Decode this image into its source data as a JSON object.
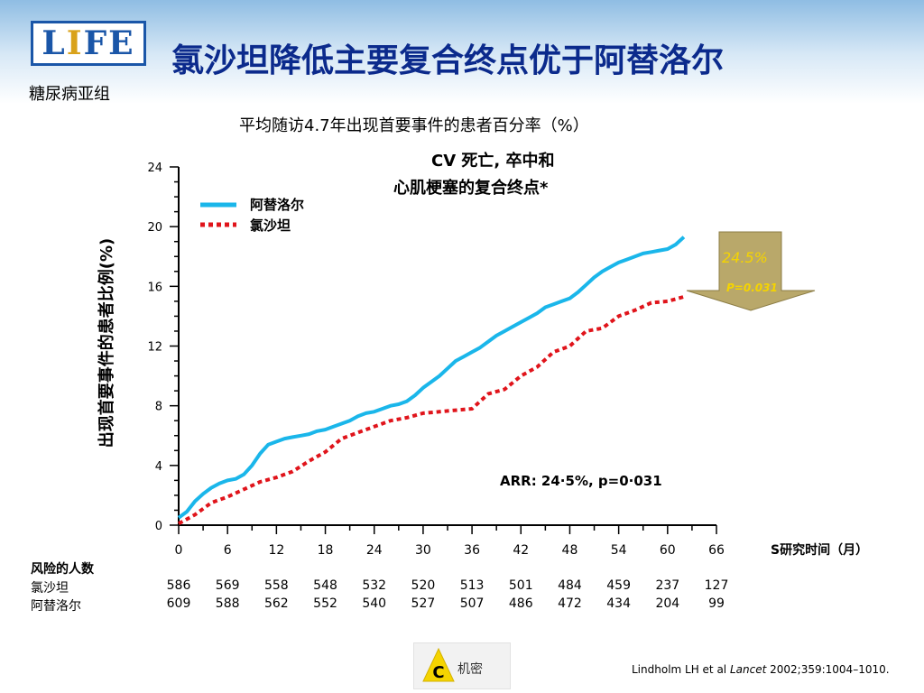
{
  "header": {
    "logo_left": "L",
    "logo_pillar": "I",
    "logo_right": "FE",
    "subgroup": "糖尿病亚组",
    "title": "氯沙坦降低主要复合终点优于阿替洛尔",
    "subtitle": "平均随访4.7年出现首要事件的患者百分率（%）"
  },
  "chart_data": {
    "type": "line",
    "title_line1": "CV 死亡, 卒中和",
    "title_line2": "心肌梗塞的复合终点*",
    "ylabel": "出现首要事件的患者比例(%)",
    "xlabel": "S研究时间（月）",
    "xlim": [
      0,
      66
    ],
    "ylim": [
      0,
      24
    ],
    "xticks": [
      "0",
      "6",
      "12",
      "18",
      "24",
      "30",
      "36",
      "42",
      "48",
      "54",
      "60",
      "66"
    ],
    "yticks": [
      "0",
      "4",
      "8",
      "12",
      "16",
      "20",
      "24"
    ],
    "legend_position": "top-left",
    "series": [
      {
        "name": "阿替洛尔",
        "color": "#1ab6ea",
        "style": "solid",
        "x": [
          0,
          1,
          2,
          3,
          4,
          5,
          6,
          7,
          8,
          9,
          10,
          11,
          12,
          13,
          14,
          15,
          16,
          17,
          18,
          19,
          20,
          21,
          22,
          23,
          24,
          25,
          26,
          27,
          28,
          29,
          30,
          31,
          32,
          33,
          34,
          35,
          36,
          37,
          38,
          39,
          40,
          41,
          42,
          43,
          44,
          45,
          46,
          47,
          48,
          49,
          50,
          51,
          52,
          53,
          54,
          55,
          56,
          57,
          58,
          59,
          60,
          61,
          62
        ],
        "values": [
          0.5,
          0.9,
          1.6,
          2.1,
          2.5,
          2.8,
          3.0,
          3.1,
          3.4,
          4.0,
          4.8,
          5.4,
          5.6,
          5.8,
          5.9,
          6.0,
          6.1,
          6.3,
          6.4,
          6.6,
          6.8,
          7.0,
          7.3,
          7.5,
          7.6,
          7.8,
          8.0,
          8.1,
          8.3,
          8.7,
          9.2,
          9.6,
          10.0,
          10.5,
          11.0,
          11.3,
          11.6,
          11.9,
          12.3,
          12.7,
          13.0,
          13.3,
          13.6,
          13.9,
          14.2,
          14.6,
          14.8,
          15.0,
          15.2,
          15.6,
          16.1,
          16.6,
          17.0,
          17.3,
          17.6,
          17.8,
          18.0,
          18.2,
          18.3,
          18.4,
          18.5,
          18.8,
          19.3
        ]
      },
      {
        "name": "氯沙坦",
        "color": "#e0141b",
        "style": "dotted",
        "x": [
          0,
          2,
          4,
          6,
          8,
          10,
          12,
          14,
          16,
          18,
          20,
          22,
          24,
          26,
          28,
          30,
          32,
          34,
          36,
          38,
          40,
          42,
          44,
          46,
          48,
          50,
          52,
          54,
          56,
          58,
          60,
          62
        ],
        "values": [
          0.1,
          0.7,
          1.5,
          1.9,
          2.4,
          2.9,
          3.2,
          3.6,
          4.3,
          4.9,
          5.8,
          6.2,
          6.6,
          7.0,
          7.2,
          7.5,
          7.6,
          7.7,
          7.8,
          8.8,
          9.1,
          10.0,
          10.6,
          11.6,
          12.0,
          13.0,
          13.2,
          14.0,
          14.4,
          14.9,
          15.0,
          15.3
        ]
      }
    ],
    "annotations": {
      "arrow_pct": "24.5%",
      "arrow_p": "P=0.031",
      "arr": "ARR: 24·5%, p=0·031"
    }
  },
  "risk_table": {
    "header": "风险的人数",
    "rows": [
      {
        "label": "氯沙坦",
        "values": [
          "586",
          "569",
          "558",
          "548",
          "532",
          "520",
          "513",
          "501",
          "484",
          "459",
          "237",
          "127"
        ]
      },
      {
        "label": "阿替洛尔",
        "values": [
          "609",
          "588",
          "562",
          "552",
          "540",
          "527",
          "507",
          "486",
          "472",
          "434",
          "204",
          "99"
        ]
      }
    ]
  },
  "footer": {
    "citation_pre": "Lindholm LH et al ",
    "citation_journal": "Lancet",
    "citation_post": " 2002;359:1004–1010.",
    "confidential_letter": "C",
    "confidential_text": "机密"
  },
  "colors": {
    "title": "#0b2a8c",
    "logo_border": "#1a56a8",
    "arrow_fill": "#b9a86a",
    "arrow_text": "#f5d400"
  }
}
